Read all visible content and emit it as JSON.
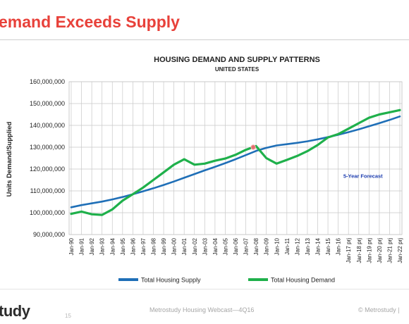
{
  "slide": {
    "title": "emand Exceeds Supply"
  },
  "footer": {
    "logo": "tudy",
    "page_number": "15",
    "webcast": "Metrostudy Housing Webcast—4Q16",
    "copyright": "© Metrostudy |"
  },
  "colors": {
    "title": "#e8413a",
    "supply": "#1f6fb7",
    "demand": "#1fb04b",
    "forecast_text": "#1f3fb0",
    "marker": "#e36f6f"
  },
  "chart_data": {
    "type": "line",
    "title": "HOUSING DEMAND AND SUPPLY PATTERNS",
    "subtitle": "UNITED STATES",
    "xlabel": "",
    "ylabel": "Units Demand/Supplied",
    "ylim": [
      90000000,
      160000000
    ],
    "yticks": [
      90000000,
      100000000,
      110000000,
      120000000,
      130000000,
      140000000,
      150000000,
      160000000
    ],
    "ytick_labels": [
      "90,000,000",
      "100,000,000",
      "110,000,000",
      "120,000,000",
      "130,000,000",
      "140,000,000",
      "150,000,000",
      "160,000,000"
    ],
    "grid": true,
    "legend_position": "bottom",
    "categories": [
      "Jan-90",
      "Jan-91",
      "Jan-92",
      "Jan-93",
      "Jan-94",
      "Jan-95",
      "Jan-96",
      "Jan-97",
      "Jan-98",
      "Jan-99",
      "Jan-00",
      "Jan-01",
      "Jan-02",
      "Jan-03",
      "Jan-04",
      "Jan-05",
      "Jan-06",
      "Jan-07",
      "Jan-08",
      "Jan-09",
      "Jan-10",
      "Jan-11",
      "Jan-12",
      "Jan-13",
      "Jan-14",
      "Jan-15",
      "Jan-16",
      "Jan-17 prj",
      "Jan-18 prj",
      "Jan-19 prj",
      "Jan-20 prj",
      "Jan-21 prj",
      "Jan-22 prj"
    ],
    "series": [
      {
        "name": "Total Housing Supply",
        "color": "#1f6fb7",
        "values": [
          102500000,
          103500000,
          104300000,
          105100000,
          106100000,
          107200000,
          108500000,
          109800000,
          111200000,
          112700000,
          114300000,
          116000000,
          117700000,
          119400000,
          121000000,
          122700000,
          124500000,
          126400000,
          128300000,
          129700000,
          130800000,
          131400000,
          132000000,
          132700000,
          133600000,
          134600000,
          135700000,
          136900000,
          138200000,
          139600000,
          141000000,
          142500000,
          144100000
        ]
      },
      {
        "name": "Total Housing Demand",
        "color": "#1fb04b",
        "values": [
          99500000,
          100500000,
          99300000,
          99000000,
          101500000,
          105500000,
          108500000,
          111500000,
          115000000,
          118500000,
          122000000,
          124500000,
          122000000,
          122500000,
          123800000,
          124800000,
          126500000,
          128800000,
          130500000,
          125000000,
          122500000,
          124200000,
          126000000,
          128200000,
          131000000,
          134500000,
          136000000,
          138500000,
          141000000,
          143500000,
          145000000,
          146000000,
          147000000
        ]
      }
    ],
    "annotations": [
      {
        "text": "5-Year Forecast",
        "x": "Jan-18 prj",
        "y": 117000000
      }
    ],
    "highlight_point": {
      "x": "Jan-08",
      "y": 130000000
    }
  }
}
